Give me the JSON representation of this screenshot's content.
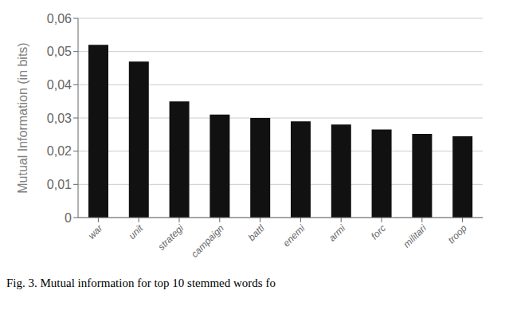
{
  "chart_data": {
    "type": "bar",
    "categories": [
      "war",
      "unit",
      "strategi",
      "campaign",
      "battl",
      "enemi",
      "armi",
      "forc",
      "militari",
      "troop"
    ],
    "values": [
      0.052,
      0.047,
      0.035,
      0.031,
      0.03,
      0.029,
      0.028,
      0.0265,
      0.0252,
      0.0245
    ],
    "color": "#111111",
    "ylabel": "Mutual Information (in bits)",
    "ylim": [
      0,
      0.06
    ],
    "yticks": [
      0,
      {
        "value": 0.01,
        "label": "0,01"
      },
      {
        "value": 0.02,
        "label": "0,02"
      },
      {
        "value": 0.03,
        "label": "0,03"
      },
      {
        "value": 0.04,
        "label": "0,04"
      },
      {
        "value": 0.05,
        "label": "0,05"
      },
      {
        "value": 0.06,
        "label": "0,06"
      }
    ],
    "grid": true,
    "caption": "Fig. 3. Mutual information for top 10 stemmed words fo"
  }
}
